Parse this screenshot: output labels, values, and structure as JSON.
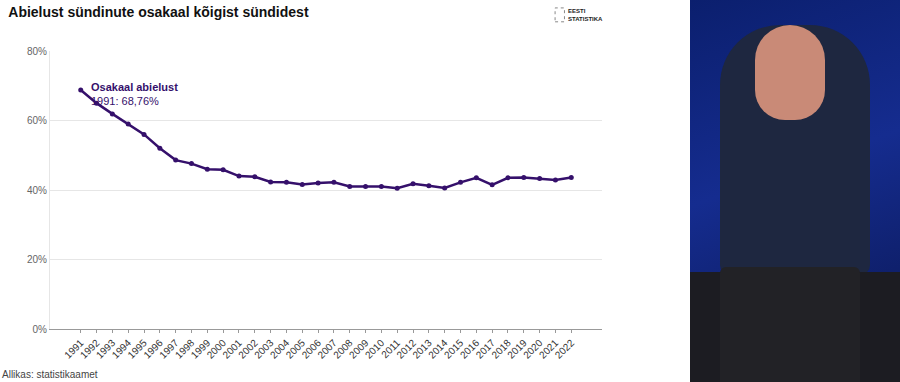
{
  "chart_data": {
    "type": "line",
    "title": "Abielust sündinute osakaal kõigist sündidest",
    "categories": [
      "1991",
      "1992",
      "1993",
      "1994",
      "1995",
      "1996",
      "1997",
      "1998",
      "1999",
      "2000",
      "2001",
      "2002",
      "2003",
      "2004",
      "2005",
      "2006",
      "2007",
      "2008",
      "2009",
      "2010",
      "2011",
      "2012",
      "2013",
      "2014",
      "2015",
      "2016",
      "2017",
      "2018",
      "2019",
      "2020",
      "2021",
      "2022"
    ],
    "series": [
      {
        "name": "Osakaal abielust",
        "color": "#35106b",
        "values": [
          68.76,
          65.0,
          61.9,
          59.0,
          56.0,
          52.0,
          48.6,
          47.6,
          46.0,
          45.8,
          44.0,
          43.8,
          42.3,
          42.2,
          41.6,
          42.0,
          42.2,
          41.0,
          41.0,
          41.0,
          40.5,
          41.8,
          41.2,
          40.6,
          42.2,
          43.5,
          41.5,
          43.5,
          43.6,
          43.3,
          42.9,
          43.6
        ]
      }
    ],
    "ylim": [
      0,
      80
    ],
    "yticks": [
      {
        "value": 0,
        "label": "0%"
      },
      {
        "value": 20,
        "label": "20%"
      },
      {
        "value": 40,
        "label": "40%"
      },
      {
        "value": 60,
        "label": "60%"
      },
      {
        "value": 80,
        "label": "80%"
      }
    ],
    "grid": true,
    "marker": "circle",
    "annotations": [
      {
        "category": "1991",
        "value": 68.76,
        "text": "1991: 68,76%"
      }
    ],
    "source": "Allikas: statistikaamet",
    "logo": [
      "EESTI",
      "STATISTIKA"
    ]
  }
}
